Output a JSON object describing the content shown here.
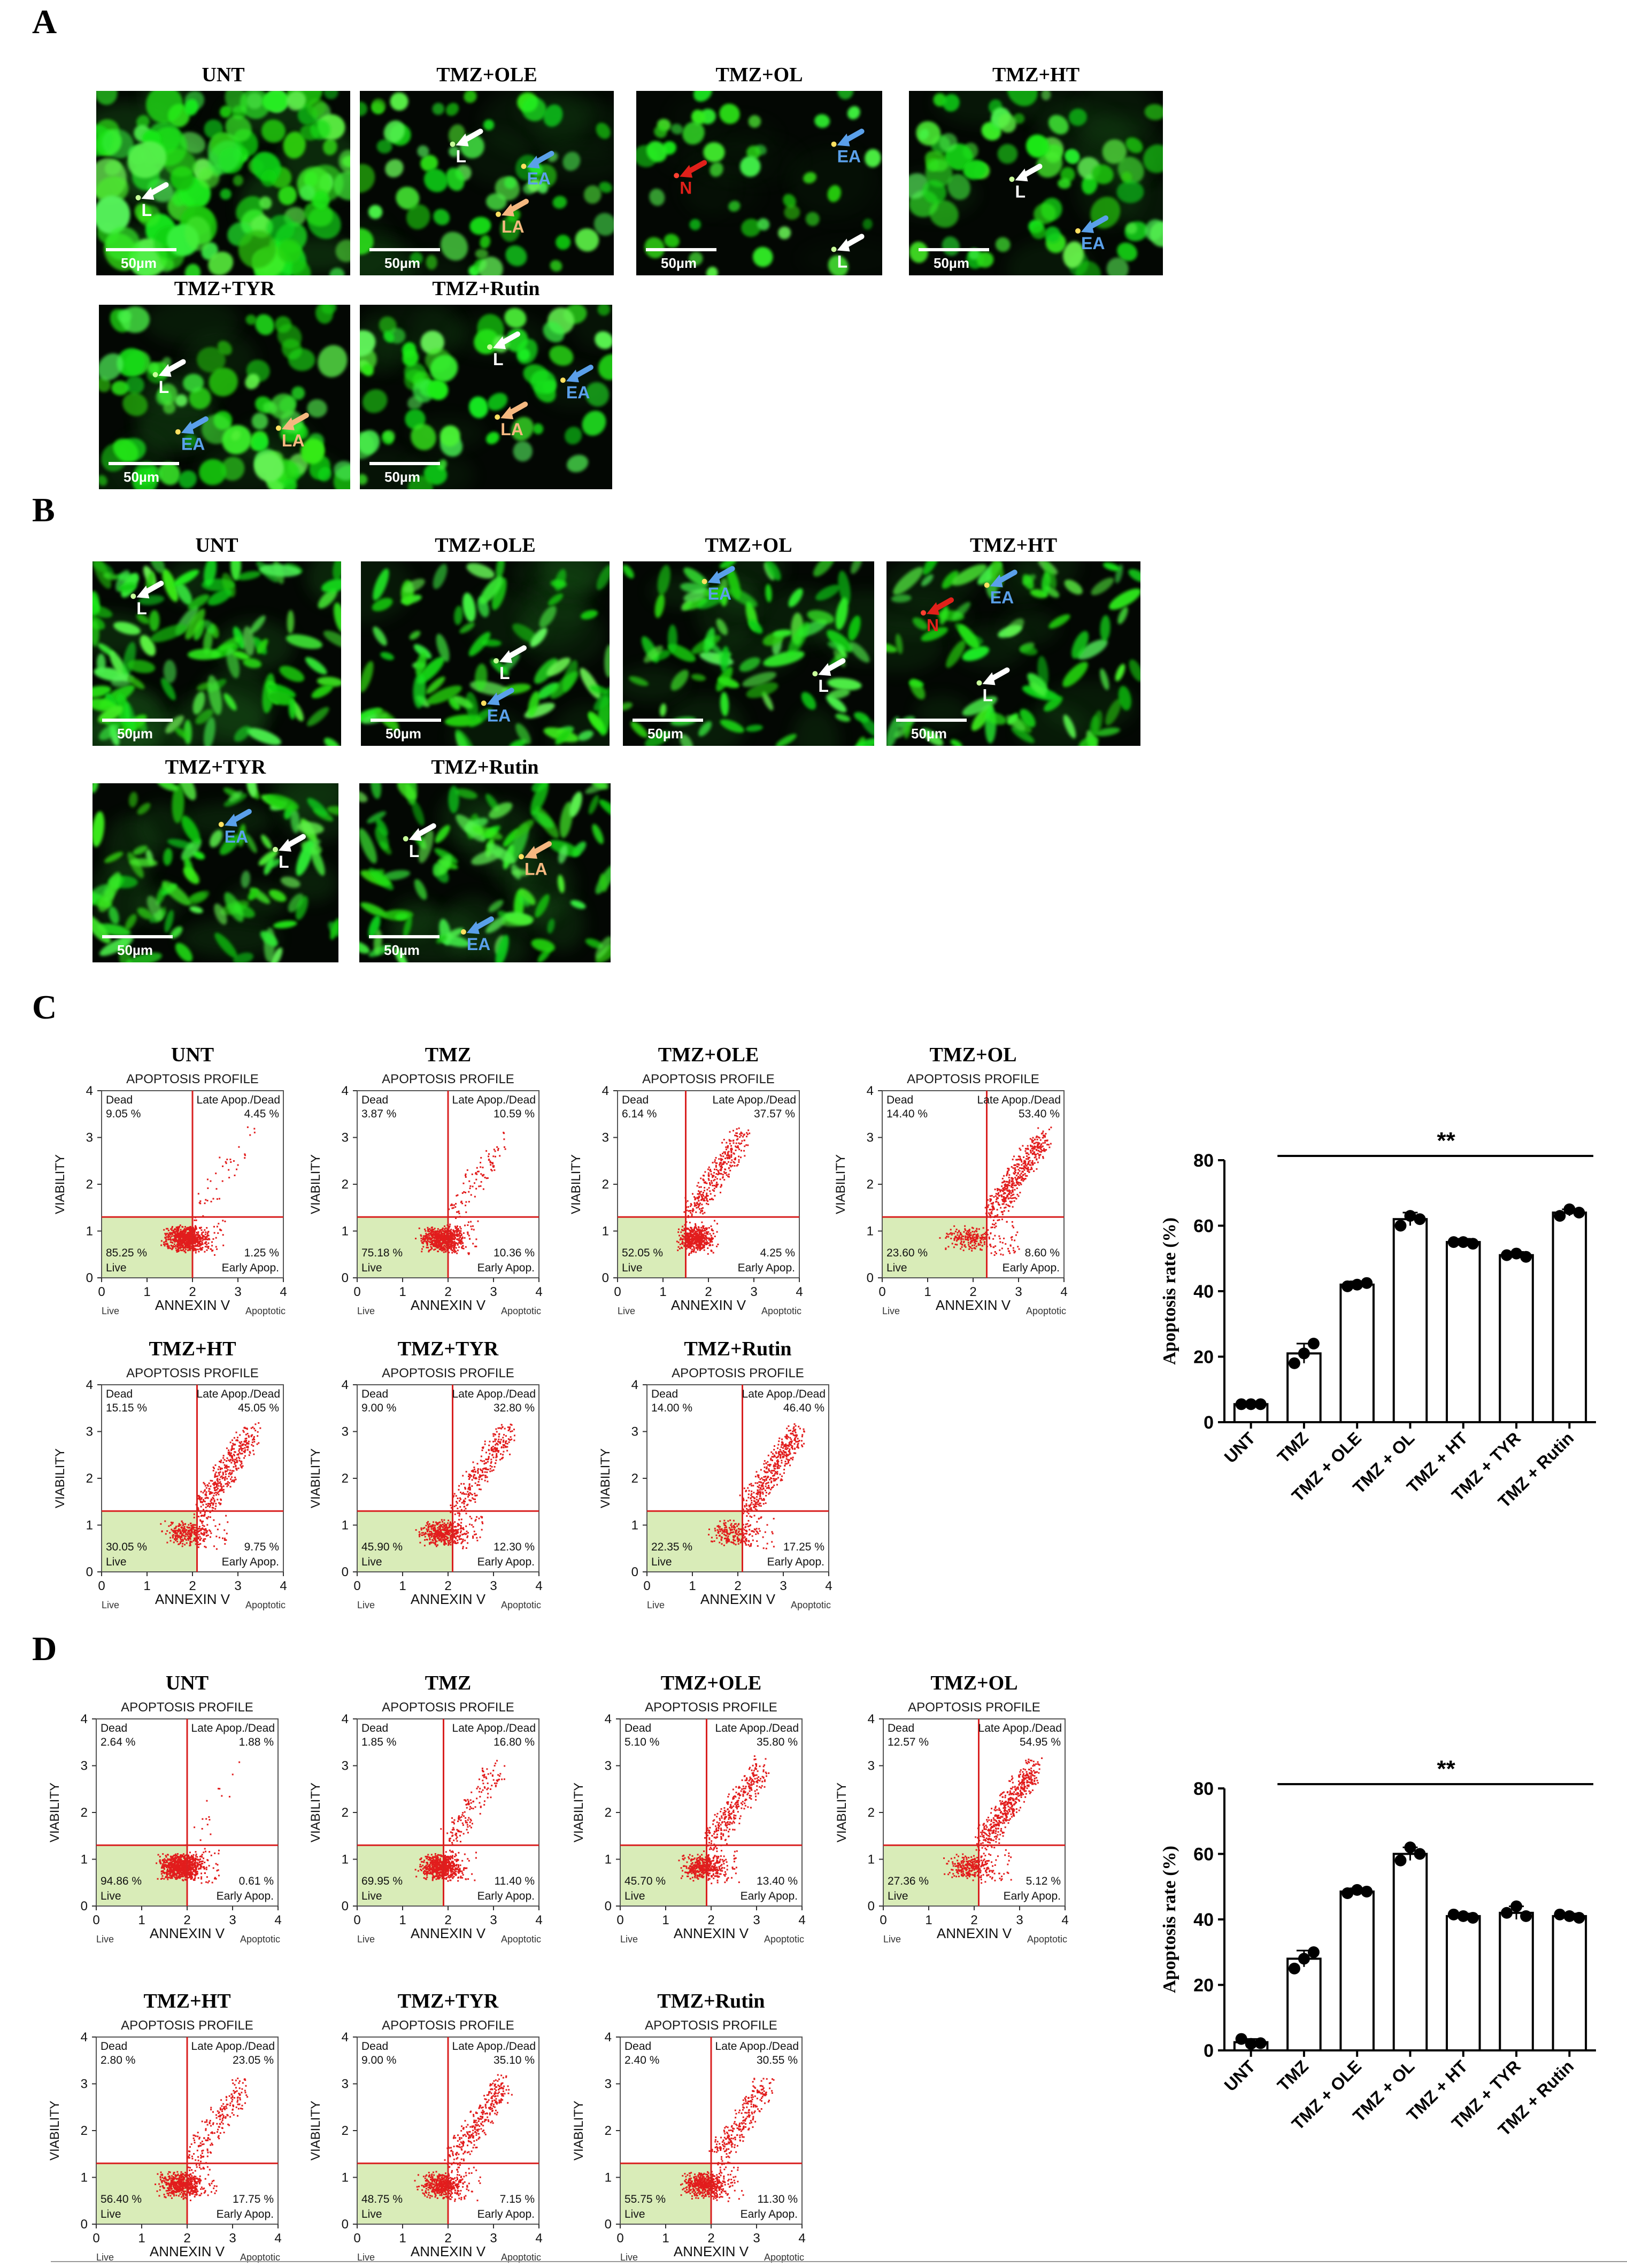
{
  "panels": {
    "A": {
      "letter": "A",
      "images": [
        {
          "title": "UNT",
          "scale": "50µm",
          "markers": [
            {
              "label": "L",
              "color": "#ffffff"
            }
          ]
        },
        {
          "title": "TMZ+OLE",
          "scale": "50µm",
          "markers": [
            {
              "label": "L",
              "color": "#ffffff"
            },
            {
              "label": "EA",
              "color": "#5aa0ea"
            },
            {
              "label": "LA",
              "color": "#f5b880"
            }
          ]
        },
        {
          "title": "TMZ+OL",
          "scale": "50µm",
          "markers": [
            {
              "label": "N",
              "color": "#e0201a"
            },
            {
              "label": "EA",
              "color": "#5aa0ea"
            },
            {
              "label": "L",
              "color": "#ffffff"
            }
          ]
        },
        {
          "title": "TMZ+HT",
          "scale": "50µm",
          "markers": [
            {
              "label": "L",
              "color": "#ffffff"
            },
            {
              "label": "EA",
              "color": "#5aa0ea"
            }
          ]
        },
        {
          "title": "TMZ+TYR",
          "scale": "50µm",
          "markers": [
            {
              "label": "L",
              "color": "#ffffff"
            },
            {
              "label": "EA",
              "color": "#5aa0ea"
            },
            {
              "label": "LA",
              "color": "#f5b880"
            }
          ]
        },
        {
          "title": "TMZ+Rutin",
          "scale": "50µm",
          "markers": [
            {
              "label": "L",
              "color": "#ffffff"
            },
            {
              "label": "EA",
              "color": "#5aa0ea"
            },
            {
              "label": "LA",
              "color": "#f5b880"
            }
          ]
        }
      ]
    },
    "B": {
      "letter": "B",
      "images": [
        {
          "title": "UNT",
          "scale": "50µm",
          "markers": [
            {
              "label": "L",
              "color": "#ffffff"
            }
          ]
        },
        {
          "title": "TMZ+OLE",
          "scale": "50µm",
          "markers": [
            {
              "label": "L",
              "color": "#ffffff"
            },
            {
              "label": "EA",
              "color": "#5aa0ea"
            }
          ]
        },
        {
          "title": "TMZ+OL",
          "scale": "50µm",
          "markers": [
            {
              "label": "EA",
              "color": "#5aa0ea"
            },
            {
              "label": "L",
              "color": "#ffffff"
            }
          ]
        },
        {
          "title": "TMZ+HT",
          "scale": "50µm",
          "markers": [
            {
              "label": "EA",
              "color": "#5aa0ea"
            },
            {
              "label": "N",
              "color": "#e0201a"
            },
            {
              "label": "L",
              "color": "#ffffff"
            }
          ]
        },
        {
          "title": "TMZ+TYR",
          "scale": "50µm",
          "markers": [
            {
              "label": "EA",
              "color": "#5aa0ea"
            },
            {
              "label": "L",
              "color": "#ffffff"
            }
          ]
        },
        {
          "title": "TMZ+Rutin",
          "scale": "50µm",
          "markers": [
            {
              "label": "L",
              "color": "#ffffff"
            },
            {
              "label": "LA",
              "color": "#f5b880"
            },
            {
              "label": "EA",
              "color": "#5aa0ea"
            }
          ]
        }
      ]
    },
    "C": {
      "letter": "C",
      "flow": [
        {
          "title": "UNT",
          "dead": "9.05 %",
          "late": "4.45 %",
          "live": "85.25 %",
          "early": "1.25 %",
          "qx": 2.0
        },
        {
          "title": "TMZ",
          "dead": "3.87 %",
          "late": "10.59 %",
          "live": "75.18 %",
          "early": "10.36 %",
          "qx": 2.0
        },
        {
          "title": "TMZ+OLE",
          "dead": "6.14 %",
          "late": "37.57 %",
          "live": "52.05 %",
          "early": "4.25 %",
          "qx": 1.5
        },
        {
          "title": "TMZ+OL",
          "dead": "14.40 %",
          "late": "53.40 %",
          "live": "23.60 %",
          "early": "8.60 %",
          "qx": 2.3
        },
        {
          "title": "TMZ+HT",
          "dead": "15.15 %",
          "late": "45.05 %",
          "live": "30.05 %",
          "early": "9.75 %",
          "qx": 2.1
        },
        {
          "title": "TMZ+TYR",
          "dead": "9.00 %",
          "late": "32.80 %",
          "live": "45.90 %",
          "early": "12.30 %",
          "qx": 2.1
        },
        {
          "title": "TMZ+Rutin",
          "dead": "14.00 %",
          "late": "46.40 %",
          "live": "22.35 %",
          "early": "17.25 %",
          "qx": 2.1
        }
      ]
    },
    "D": {
      "letter": "D",
      "flow": [
        {
          "title": "UNT",
          "dead": "2.64 %",
          "late": "1.88 %",
          "live": "94.86 %",
          "early": "0.61 %",
          "qx": 2.0
        },
        {
          "title": "TMZ",
          "dead": "1.85 %",
          "late": "16.80 %",
          "live": "69.95 %",
          "early": "11.40 %",
          "qx": 1.9
        },
        {
          "title": "TMZ+OLE",
          "dead": "5.10 %",
          "late": "35.80 %",
          "live": "45.70 %",
          "early": "13.40 %",
          "qx": 1.9
        },
        {
          "title": "TMZ+OL",
          "dead": "12.57 %",
          "late": "54.95 %",
          "live": "27.36 %",
          "early": "5.12 %",
          "qx": 2.1
        },
        {
          "title": "TMZ+HT",
          "dead": "2.80 %",
          "late": "23.05 %",
          "live": "56.40 %",
          "early": "17.75 %",
          "qx": 2.0
        },
        {
          "title": "TMZ+TYR",
          "dead": "9.00 %",
          "late": "35.10 %",
          "live": "48.75 %",
          "early": "7.15 %",
          "qx": 2.0
        },
        {
          "title": "TMZ+Rutin",
          "dead": "2.40 %",
          "late": "30.55 %",
          "live": "55.75 %",
          "early": "11.30 %",
          "qx": 2.0
        }
      ]
    }
  },
  "flow_common": {
    "header": "APOPTOSIS PROFILE",
    "dead_label": "Dead",
    "late_label": "Late Apop./Dead",
    "live_label": "Live",
    "early_label": "Early Apop.",
    "xlabel": "ANNEXIN V",
    "ylabel": "VIABILITY",
    "x_left": "Live",
    "x_right": "Apoptotic",
    "ticks": [
      "0",
      "1",
      "2",
      "3",
      "4"
    ],
    "colors": {
      "gate": "#d92020",
      "dots": "#e21d1d",
      "live_fill": "#d9ecb8"
    }
  },
  "chart_data": [
    {
      "type": "bar",
      "panel": "C",
      "categories": [
        "UNT",
        "TMZ",
        "TMZ + OLE",
        "TMZ + OL",
        "TMZ + HT",
        "TMZ + TYR",
        "TMZ + Rutin"
      ],
      "values": [
        5.5,
        21,
        42,
        62,
        55,
        51,
        64
      ],
      "errors": [
        0.5,
        3,
        1,
        2,
        1,
        1,
        1
      ],
      "points": [
        [
          5.5,
          5.5,
          5.5
        ],
        [
          18,
          21,
          24
        ],
        [
          41.5,
          42,
          42.5
        ],
        [
          60,
          63,
          62
        ],
        [
          55,
          55,
          54.5
        ],
        [
          51,
          51.5,
          50.5
        ],
        [
          63,
          65,
          64
        ]
      ],
      "ylabel": "Apoptosis rate (%)",
      "ylim": [
        0,
        80
      ],
      "yticks": [
        0,
        20,
        40,
        60,
        80
      ],
      "annotation": "**"
    },
    {
      "type": "bar",
      "panel": "D",
      "categories": [
        "UNT",
        "TMZ",
        "TMZ + OLE",
        "TMZ + OL",
        "TMZ + HT",
        "TMZ + TYR",
        "TMZ + Rutin"
      ],
      "values": [
        2.5,
        28,
        48.5,
        60,
        41,
        42,
        41
      ],
      "errors": [
        1,
        2.5,
        1,
        2,
        0.8,
        2,
        0.8
      ],
      "points": [
        [
          3.5,
          2,
          2.2
        ],
        [
          25,
          28,
          30
        ],
        [
          48,
          49,
          48.5
        ],
        [
          58,
          62,
          60
        ],
        [
          41.5,
          41,
          40.5
        ],
        [
          42,
          44,
          41
        ],
        [
          41.5,
          41,
          40.5
        ]
      ],
      "ylabel": "Apoptosis rate (%)",
      "ylim": [
        0,
        80
      ],
      "yticks": [
        0,
        20,
        40,
        60,
        80
      ],
      "annotation": "**"
    }
  ]
}
